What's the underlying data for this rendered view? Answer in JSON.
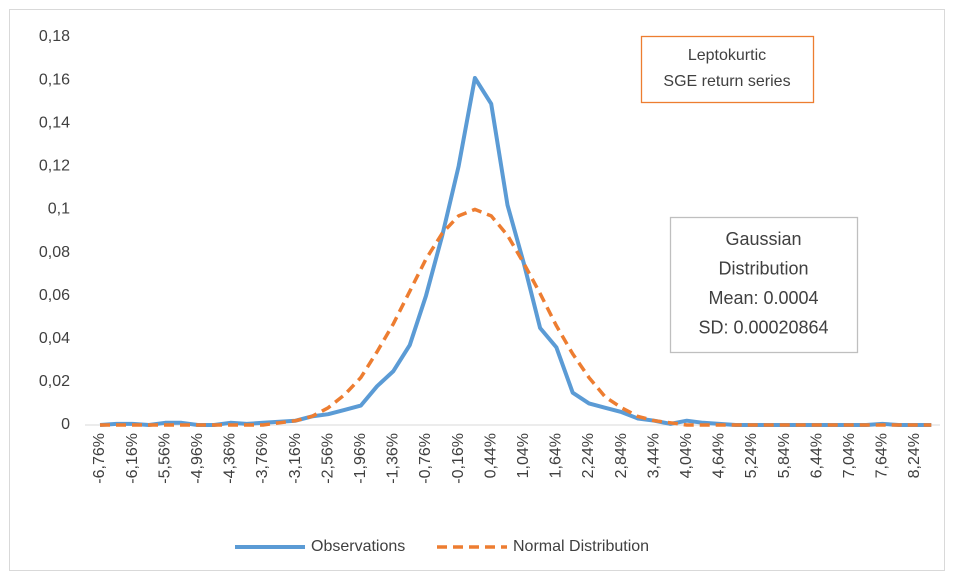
{
  "chart_data": {
    "type": "line",
    "categories": [
      "-6,76%",
      null,
      "-6,16%",
      null,
      "-5,56%",
      null,
      "-4,96%",
      null,
      "-4,36%",
      null,
      "-3,76%",
      null,
      "-3,16%",
      null,
      "-2,56%",
      null,
      "-1,96%",
      null,
      "-1,36%",
      null,
      "-0,76%",
      null,
      "-0,16%",
      null,
      "0,44%",
      null,
      "1,04%",
      null,
      "1,64%",
      null,
      "2,24%",
      null,
      "2,84%",
      null,
      "3,44%",
      null,
      "4,04%",
      null,
      "4,64%",
      null,
      "5,24%",
      null,
      "5,84%",
      null,
      "6,44%",
      null,
      "7,04%",
      null,
      "7,64%",
      null,
      "8,24%",
      null
    ],
    "series": [
      {
        "name": "Observations",
        "color": "#5b9bd5",
        "dash": false,
        "values": [
          0,
          0.0005,
          0.0005,
          0,
          0.001,
          0.001,
          0,
          0,
          0.001,
          0.0005,
          0.001,
          0.0015,
          0.002,
          0.004,
          0.005,
          0.007,
          0.009,
          0.018,
          0.025,
          0.037,
          0.06,
          0.088,
          0.12,
          0.161,
          0.149,
          0.102,
          0.075,
          0.045,
          0.036,
          0.015,
          0.01,
          0.008,
          0.006,
          0.003,
          0.002,
          0.0005,
          0.002,
          0.001,
          0.0005,
          0,
          0,
          0,
          0,
          0,
          0,
          0,
          0,
          0,
          0.0005,
          0,
          0,
          0
        ]
      },
      {
        "name": "Normal Distribution",
        "color": "#ed7d31",
        "dash": true,
        "values": [
          0,
          0,
          0,
          0,
          0,
          0,
          0,
          0,
          0,
          0,
          0,
          0.001,
          0.002,
          0.004,
          0.008,
          0.014,
          0.022,
          0.034,
          0.047,
          0.062,
          0.077,
          0.089,
          0.097,
          0.1,
          0.097,
          0.088,
          0.075,
          0.061,
          0.046,
          0.033,
          0.022,
          0.013,
          0.008,
          0.004,
          0.002,
          0.001,
          0,
          0,
          0,
          0,
          0,
          0,
          0,
          0,
          0,
          0,
          0,
          0,
          0,
          0,
          0,
          0
        ]
      }
    ],
    "ylim": [
      0,
      0.18
    ],
    "yticks": [
      0,
      {
        "value": 0.02,
        "label": "0,02"
      },
      {
        "value": 0.04,
        "label": "0,04"
      },
      {
        "value": 0.06,
        "label": "0,06"
      },
      {
        "value": 0.08,
        "label": "0,08"
      },
      {
        "value": 0.1,
        "label": "0,1"
      },
      {
        "value": 0.12,
        "label": "0,12"
      },
      {
        "value": 0.14,
        "label": "0,14"
      },
      {
        "value": 0.16,
        "label": "0,16"
      },
      {
        "value": 0.18,
        "label": "0,18"
      }
    ],
    "grid": false,
    "legend": "bottom",
    "annotations": [
      {
        "lines": [
          "Leptokurtic",
          "SGE return series"
        ],
        "color": "#ed7d31"
      },
      {
        "lines": [
          "Gaussian",
          "Distribution",
          "Mean: 0.0004",
          "SD: 0.00020864"
        ],
        "color": "#bfbfbf"
      }
    ]
  }
}
